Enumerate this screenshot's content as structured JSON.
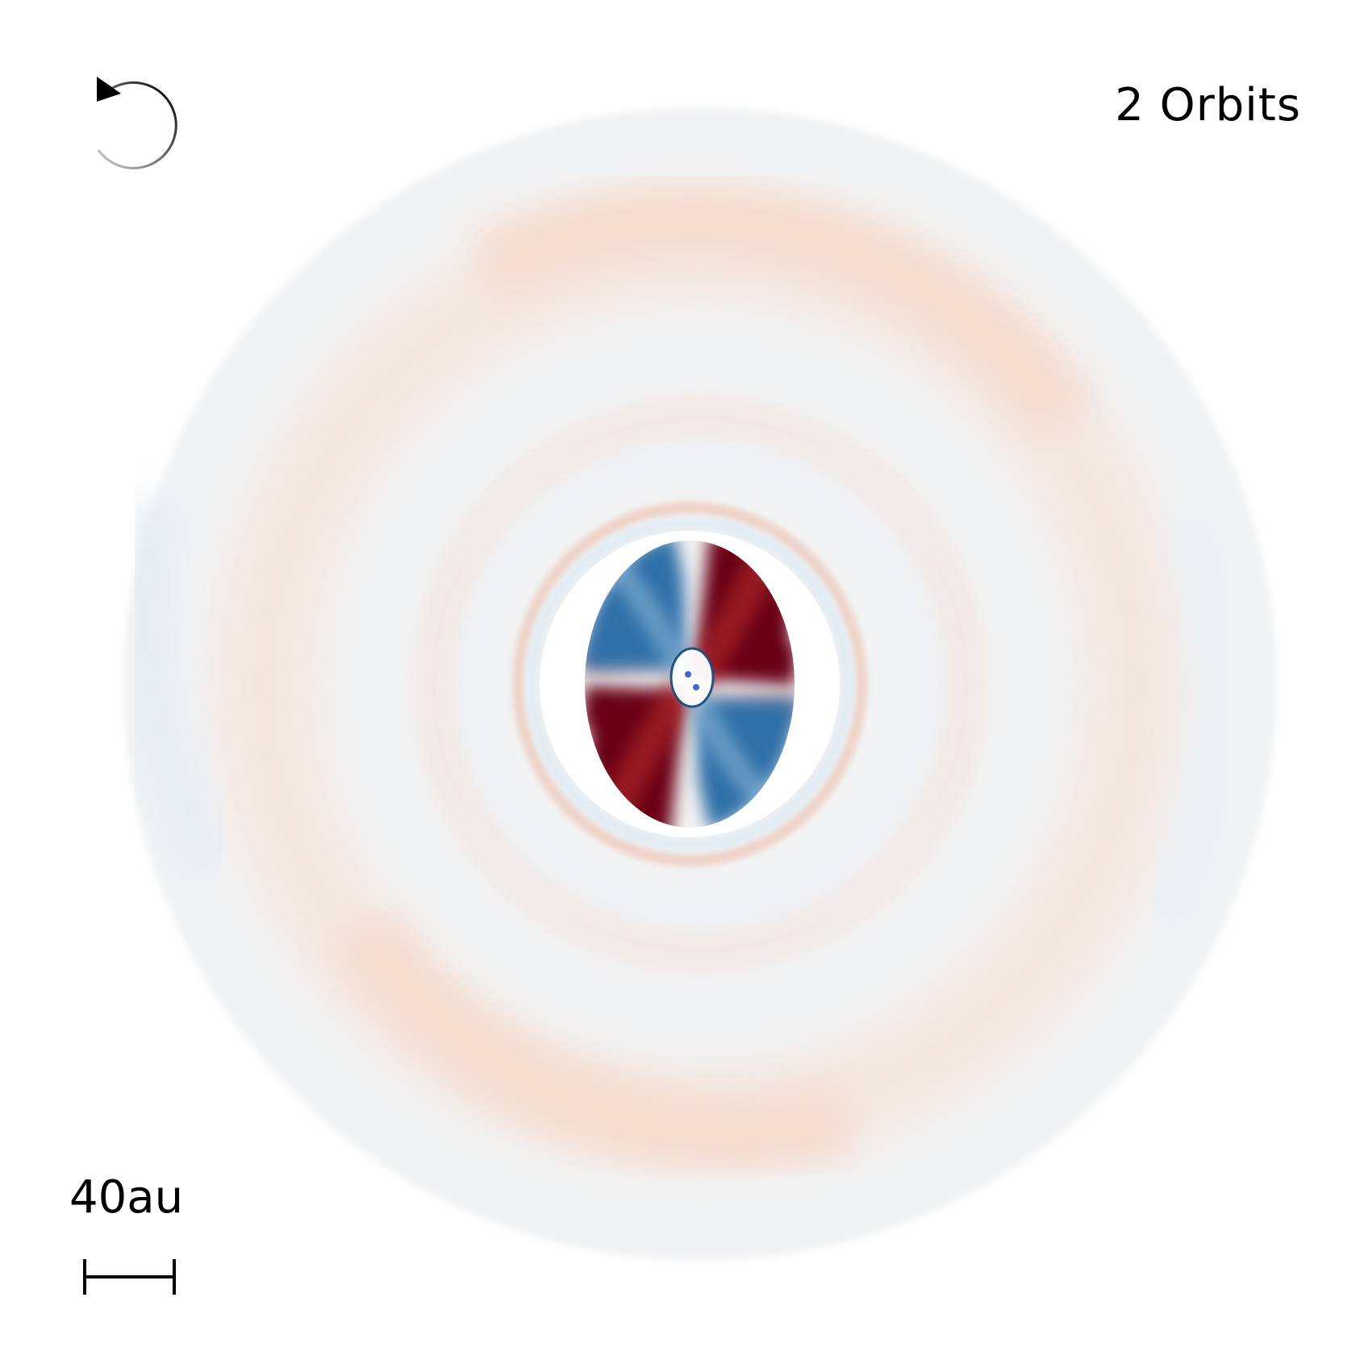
{
  "time_label": "2 Orbits",
  "scale_label": "40au",
  "rotation_indicator": "counter-clockwise-arrow-icon",
  "colors": {
    "background": "#ffffff",
    "positive": "#6b0019",
    "negative": "#2f6fa8",
    "ring_positive": "#f2d8cc",
    "ring_negative": "#e3ecf3",
    "stars": "#4466cc"
  }
}
